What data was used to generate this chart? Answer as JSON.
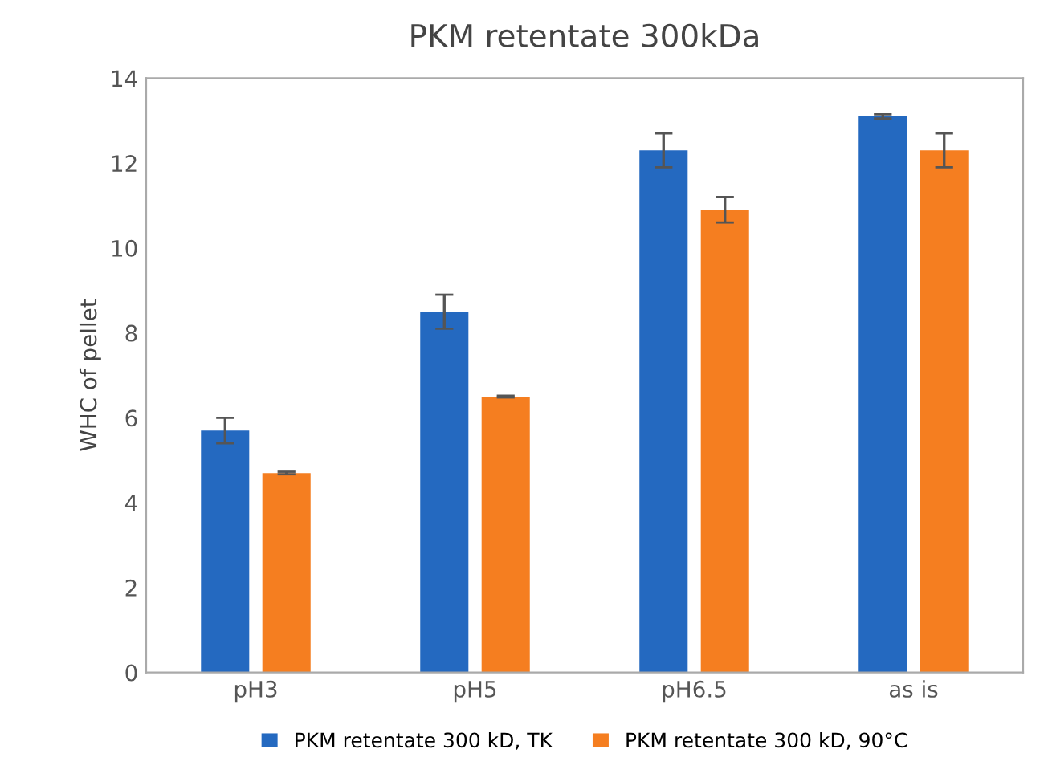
{
  "chart_data": {
    "type": "bar",
    "title": "PKM retentate 300kDa",
    "ylabel": "WHC of pellet",
    "categories": [
      "pH3",
      "pH5",
      "pH6.5",
      "as is"
    ],
    "series": [
      {
        "name": "PKM retentate 300 kD, TK",
        "color": "#2469c0",
        "values": [
          5.7,
          8.5,
          12.3,
          13.1
        ],
        "errors": [
          0.3,
          0.4,
          0.4,
          0.05
        ]
      },
      {
        "name": "PKM retentate 300 kD, 90°C",
        "color": "#f57e20",
        "values": [
          4.7,
          6.5,
          10.9,
          12.3
        ],
        "errors": [
          0.03,
          0.02,
          0.3,
          0.4
        ]
      }
    ],
    "ylim": [
      0,
      14
    ],
    "yticks": [
      0,
      2,
      4,
      6,
      8,
      10,
      12,
      14
    ],
    "grid": false,
    "legend": "bottom"
  }
}
